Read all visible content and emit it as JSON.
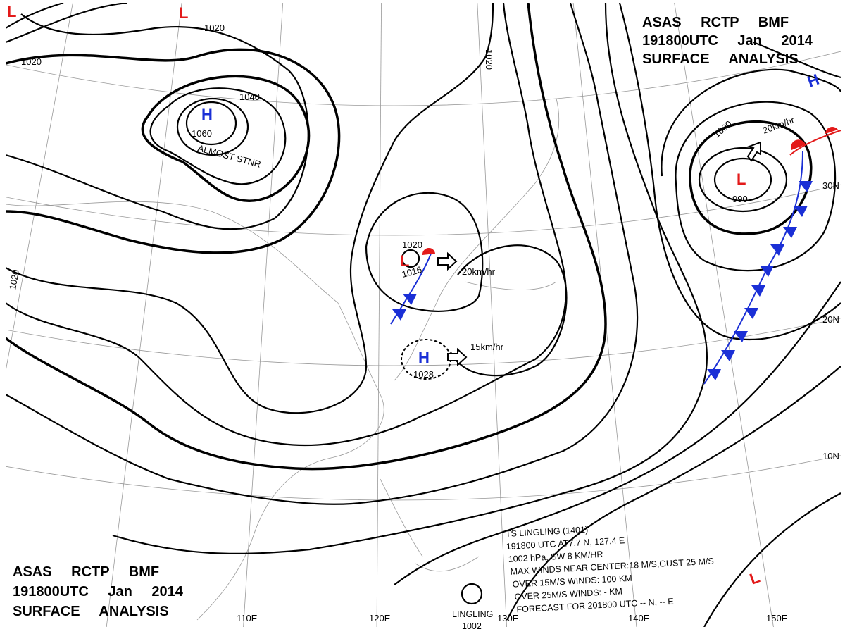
{
  "header": {
    "lines": [
      "ASAS RCTP BMF",
      "191800UTC Jan 2014",
      "SURFACE ANALYSIS"
    ]
  },
  "footer": {
    "lines": [
      "ASAS RCTP BMF",
      "191800UTC Jan 2014",
      "SURFACE ANALYSIS"
    ]
  },
  "systems": [
    {
      "symbol": "H",
      "value": "1060",
      "note": "ALMOST STNR"
    },
    {
      "symbol": "L",
      "value": "1016",
      "motion": "20km/hr"
    },
    {
      "symbol": "H",
      "value": "1028",
      "motion": "15km/hr"
    },
    {
      "symbol": "L",
      "value": "990",
      "motion": "20km/hr"
    },
    {
      "symbol": "H"
    },
    {
      "symbol": "L"
    },
    {
      "symbol": "L"
    },
    {
      "symbol": "L"
    }
  ],
  "isobar_labels": [
    "1020",
    "1020",
    "1040",
    "1020",
    "1020",
    "1000",
    "1020"
  ],
  "latitudes": [
    "30N",
    "20N",
    "10N"
  ],
  "longitudes": [
    "110E",
    "120E",
    "130E",
    "140E",
    "150E"
  ],
  "typhoon": {
    "lines": [
      "TS LINGLING (1401)",
      "191800 UTC AT7.7 N, 127.4 E",
      "1002 hPa, SW 8 KM/HR",
      "MAX WINDS NEAR CENTER:18 M/S,GUST 25 M/S",
      "OVER 15M/S WINDS: 100 KM",
      "OVER 25M/S WINDS: - KM",
      "FORECAST FOR 201800 UTC -- N, -- E"
    ],
    "name": "LINGLING",
    "pressure": "1002"
  }
}
